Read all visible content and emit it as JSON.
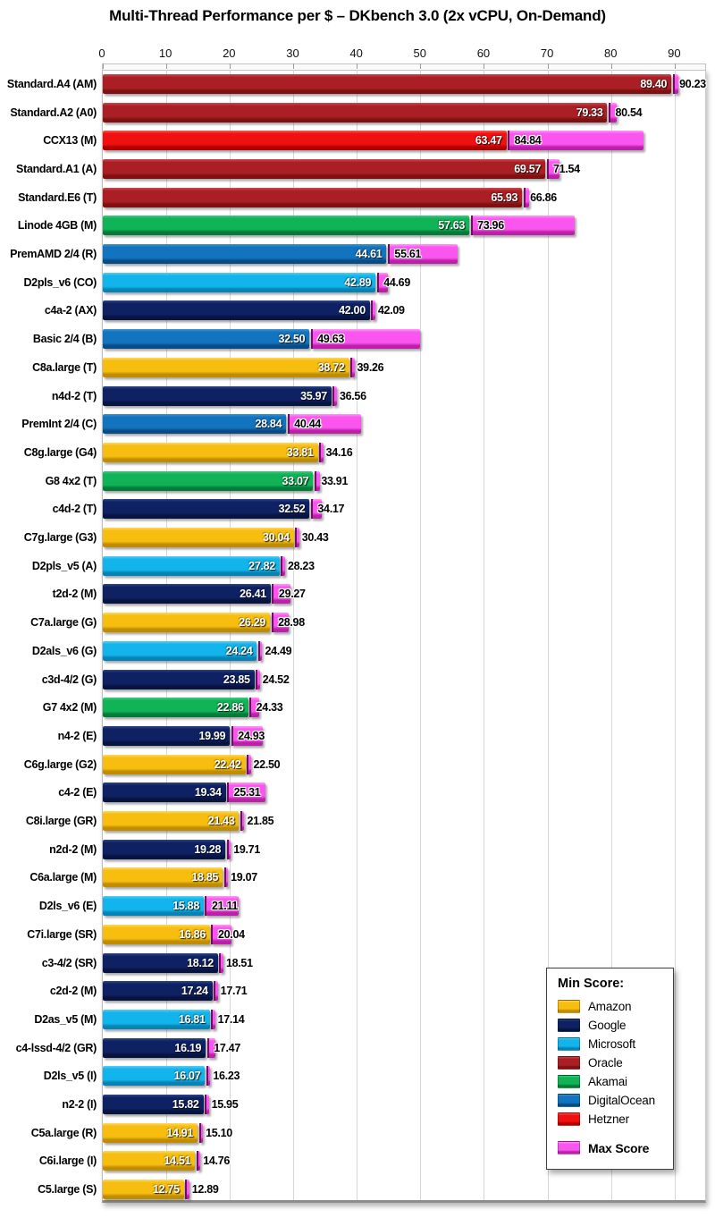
{
  "title": "Multi-Thread Performance per $ – DKbench 3.0 (2x vCPU, On-Demand)",
  "legend": {
    "title": "Min Score:",
    "items": [
      "Amazon",
      "Google",
      "Microsoft",
      "Oracle",
      "Akamai",
      "DigitalOcean",
      "Hetzner"
    ],
    "max_item": "Max Score"
  },
  "chart_data": {
    "type": "bar",
    "orientation": "horizontal",
    "title": "Multi-Thread Performance per $ – DKbench 3.0 (2x vCPU, On-Demand)",
    "xlim": [
      0,
      95
    ],
    "axis_ticks": [
      0,
      10,
      20,
      30,
      40,
      50,
      60,
      70,
      80,
      90
    ],
    "grid": true,
    "legend_position": "bottom-right",
    "series_legend": {
      "min_series": "Min Score",
      "max_series": "Max Score"
    },
    "provider_colors": {
      "Amazon": {
        "light": "#FFD75E",
        "base": "#F7BD0F",
        "dark": "#C08C00"
      },
      "Google": {
        "light": "#2E4687",
        "base": "#0E2163",
        "dark": "#071440"
      },
      "Microsoft": {
        "light": "#55CDF5",
        "base": "#12B4EC",
        "dark": "#0583B5"
      },
      "Oracle": {
        "light": "#CE4A50",
        "base": "#AA1F24",
        "dark": "#7E1012"
      },
      "Akamai": {
        "light": "#3ECC7F",
        "base": "#10B355",
        "dark": "#057A39"
      },
      "DigitalOcean": {
        "light": "#3E93D2",
        "base": "#1273BE",
        "dark": "#0A4B85"
      },
      "Hetzner": {
        "light": "#FF5A52",
        "base": "#F01010",
        "dark": "#B00000"
      }
    },
    "max_color": {
      "light": "#FF9AF8",
      "base": "#FA55EE",
      "dark": "#BC1FA8",
      "separator": "#6E0E60"
    },
    "rows": [
      {
        "label": "Standard.A4 (AM)",
        "provider": "Oracle",
        "min": 89.4,
        "max": 90.23,
        "min_label": "89.40",
        "max_label": "90.23"
      },
      {
        "label": "Standard.A2 (A0)",
        "provider": "Oracle",
        "min": 79.33,
        "max": 80.54,
        "min_label": "79.33",
        "max_label": "80.54"
      },
      {
        "label": "CCX13 (M)",
        "provider": "Hetzner",
        "min": 63.47,
        "max": 84.84,
        "min_label": "63.47",
        "max_label": "84.84"
      },
      {
        "label": "Standard.A1 (A)",
        "provider": "Oracle",
        "min": 69.57,
        "max": 71.54,
        "min_label": "69.57",
        "max_label": "71.54"
      },
      {
        "label": "Standard.E6 (T)",
        "provider": "Oracle",
        "min": 65.93,
        "max": 66.86,
        "min_label": "65.93",
        "max_label": "66.86"
      },
      {
        "label": "Linode 4GB (M)",
        "provider": "Akamai",
        "min": 57.63,
        "max": 73.96,
        "min_label": "57.63",
        "max_label": "73.96"
      },
      {
        "label": "PremAMD 2/4 (R)",
        "provider": "DigitalOcean",
        "min": 44.61,
        "max": 55.61,
        "min_label": "44.61",
        "max_label": "55.61"
      },
      {
        "label": "D2pls_v6 (CO)",
        "provider": "Microsoft",
        "min": 42.89,
        "max": 44.69,
        "min_label": "42.89",
        "max_label": "44.69"
      },
      {
        "label": "c4a-2 (AX)",
        "provider": "Google",
        "min": 42.0,
        "max": 42.09,
        "min_label": "42.00",
        "max_label": "42.09"
      },
      {
        "label": "Basic 2/4 (B)",
        "provider": "DigitalOcean",
        "min": 32.5,
        "max": 49.63,
        "min_label": "32.50",
        "max_label": "49.63"
      },
      {
        "label": "C8a.large (T)",
        "provider": "Amazon",
        "min": 38.72,
        "max": 39.26,
        "min_label": "38.72",
        "max_label": "39.26"
      },
      {
        "label": "n4d-2 (T)",
        "provider": "Google",
        "min": 35.97,
        "max": 36.56,
        "min_label": "35.97",
        "max_label": "36.56"
      },
      {
        "label": "PremInt 2/4 (C)",
        "provider": "DigitalOcean",
        "min": 28.84,
        "max": 40.44,
        "min_label": "28.84",
        "max_label": "40.44"
      },
      {
        "label": "C8g.large (G4)",
        "provider": "Amazon",
        "min": 33.81,
        "max": 34.16,
        "min_label": "33.81",
        "max_label": "34.16"
      },
      {
        "label": "G8 4x2 (T)",
        "provider": "Akamai",
        "min": 33.07,
        "max": 33.91,
        "min_label": "33.07",
        "max_label": "33.91"
      },
      {
        "label": "c4d-2 (T)",
        "provider": "Google",
        "min": 32.52,
        "max": 34.17,
        "min_label": "32.52",
        "max_label": "34.17"
      },
      {
        "label": "C7g.large (G3)",
        "provider": "Amazon",
        "min": 30.04,
        "max": 30.43,
        "min_label": "30.04",
        "max_label": "30.43"
      },
      {
        "label": "D2pls_v5 (A)",
        "provider": "Microsoft",
        "min": 27.82,
        "max": 28.23,
        "min_label": "27.82",
        "max_label": "28.23"
      },
      {
        "label": "t2d-2 (M)",
        "provider": "Google",
        "min": 26.41,
        "max": 29.27,
        "min_label": "26.41",
        "max_label": "29.27"
      },
      {
        "label": "C7a.large (G)",
        "provider": "Amazon",
        "min": 26.29,
        "max": 28.98,
        "min_label": "26.29",
        "max_label": "28.98"
      },
      {
        "label": "D2als_v6 (G)",
        "provider": "Microsoft",
        "min": 24.24,
        "max": 24.49,
        "min_label": "24.24",
        "max_label": "24.49"
      },
      {
        "label": "c3d-4/2 (G)",
        "provider": "Google",
        "min": 23.85,
        "max": 24.52,
        "min_label": "23.85",
        "max_label": "24.52"
      },
      {
        "label": "G7 4x2 (M)",
        "provider": "Akamai",
        "min": 22.86,
        "max": 24.33,
        "min_label": "22.86",
        "max_label": "24.33"
      },
      {
        "label": "n4-2 (E)",
        "provider": "Google",
        "min": 19.99,
        "max": 24.93,
        "min_label": "19.99",
        "max_label": "24.93"
      },
      {
        "label": "C6g.large (G2)",
        "provider": "Amazon",
        "min": 22.42,
        "max": 22.5,
        "min_label": "22.42",
        "max_label": "22.50"
      },
      {
        "label": "c4-2 (E)",
        "provider": "Google",
        "min": 19.34,
        "max": 25.31,
        "min_label": "19.34",
        "max_label": "25.31"
      },
      {
        "label": "C8i.large (GR)",
        "provider": "Amazon",
        "min": 21.43,
        "max": 21.85,
        "min_label": "21.43",
        "max_label": "21.85"
      },
      {
        "label": "n2d-2 (M)",
        "provider": "Google",
        "min": 19.28,
        "max": 19.71,
        "min_label": "19.28",
        "max_label": "19.71"
      },
      {
        "label": "C6a.large (M)",
        "provider": "Amazon",
        "min": 18.85,
        "max": 19.07,
        "min_label": "18.85",
        "max_label": "19.07"
      },
      {
        "label": "D2ls_v6 (E)",
        "provider": "Microsoft",
        "min": 15.88,
        "max": 21.11,
        "min_label": "15.88",
        "max_label": "21.11"
      },
      {
        "label": "C7i.large (SR)",
        "provider": "Amazon",
        "min": 16.86,
        "max": 20.04,
        "min_label": "16.86",
        "max_label": "20.04"
      },
      {
        "label": "c3-4/2 (SR)",
        "provider": "Google",
        "min": 18.12,
        "max": 18.51,
        "min_label": "18.12",
        "max_label": "18.51"
      },
      {
        "label": "c2d-2 (M)",
        "provider": "Google",
        "min": 17.24,
        "max": 17.71,
        "min_label": "17.24",
        "max_label": "17.71"
      },
      {
        "label": "D2as_v5 (M)",
        "provider": "Microsoft",
        "min": 16.81,
        "max": 17.14,
        "min_label": "16.81",
        "max_label": "17.14"
      },
      {
        "label": "c4-lssd-4/2 (GR)",
        "provider": "Google",
        "min": 16.19,
        "max": 17.47,
        "min_label": "16.19",
        "max_label": "17.47"
      },
      {
        "label": "D2ls_v5 (I)",
        "provider": "Microsoft",
        "min": 16.07,
        "max": 16.23,
        "min_label": "16.07",
        "max_label": "16.23"
      },
      {
        "label": "n2-2 (I)",
        "provider": "Google",
        "min": 15.82,
        "max": 15.95,
        "min_label": "15.82",
        "max_label": "15.95"
      },
      {
        "label": "C5a.large (R)",
        "provider": "Amazon",
        "min": 14.91,
        "max": 15.1,
        "min_label": "14.91",
        "max_label": "15.10"
      },
      {
        "label": "C6i.large (I)",
        "provider": "Amazon",
        "min": 14.51,
        "max": 14.76,
        "min_label": "14.51",
        "max_label": "14.76"
      },
      {
        "label": "C5.large (S)",
        "provider": "Amazon",
        "min": 12.75,
        "max": 12.89,
        "min_label": "12.75",
        "max_label": "12.89"
      }
    ]
  }
}
